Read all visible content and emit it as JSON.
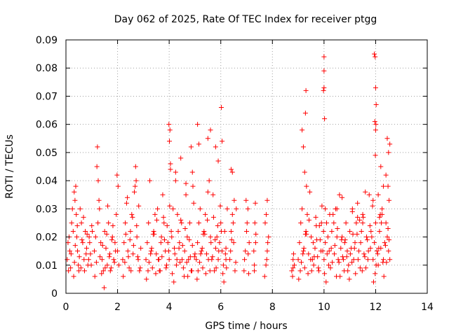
{
  "chart_data": {
    "type": "scatter",
    "title": "Day 062 of 2025, Rate Of TEC Index for receiver ptgg",
    "xlabel": "GPS time / hours",
    "ylabel": "ROTI / TECUs",
    "xlim": [
      0,
      14
    ],
    "ylim": [
      0,
      0.09
    ],
    "xticks": [
      0,
      2,
      4,
      6,
      8,
      10,
      12,
      14
    ],
    "yticks": [
      0,
      0.01,
      0.02,
      0.03,
      0.04,
      0.05,
      0.06,
      0.07,
      0.08,
      0.09
    ],
    "xtick_labels": [
      "0",
      "2",
      "4",
      "6",
      "8",
      "10",
      "12",
      "14"
    ],
    "ytick_labels": [
      "0",
      "0.01",
      "0.02",
      "0.03",
      "0.04",
      "0.05",
      "0.06",
      "0.07",
      "0.08",
      "0.09"
    ],
    "grid": true,
    "marker": "plus",
    "color": "#ff0000",
    "series": [
      {
        "name": "ROTI",
        "x": [
          0.05,
          0.08,
          0.12,
          0.15,
          0.18,
          0.22,
          0.25,
          0.28,
          0.32,
          0.35,
          0.38,
          0.4,
          0.42,
          0.45,
          0.48,
          0.5,
          0.55,
          0.6,
          0.65,
          0.7,
          0.75,
          0.8,
          0.85,
          0.9,
          0.95,
          1.0,
          0.1,
          0.2,
          0.3,
          0.33,
          0.36,
          0.44,
          0.52,
          0.58,
          0.62,
          0.68,
          0.72,
          0.78,
          0.82,
          0.88,
          0.92,
          0.98,
          1.02,
          1.1,
          1.15,
          1.2,
          1.22,
          1.25,
          1.3,
          1.35,
          1.4,
          1.45,
          1.5,
          1.55,
          1.6,
          1.65,
          1.7,
          1.75,
          1.8,
          1.85,
          1.9,
          1.95,
          2.0,
          2.05,
          1.12,
          1.18,
          1.24,
          1.28,
          1.32,
          1.38,
          1.42,
          1.48,
          1.52,
          1.58,
          1.62,
          1.68,
          1.72,
          1.78,
          1.82,
          1.88,
          1.92,
          1.98,
          2.02,
          2.2,
          2.25,
          2.3,
          2.35,
          2.4,
          2.45,
          2.5,
          2.55,
          2.6,
          2.65,
          2.7,
          2.72,
          2.75,
          2.8,
          2.85,
          2.9,
          2.22,
          2.28,
          2.32,
          2.38,
          2.42,
          2.48,
          2.52,
          2.58,
          2.62,
          2.68,
          2.74,
          2.78,
          2.82,
          2.88,
          3.1,
          3.15,
          3.2,
          3.25,
          3.3,
          3.35,
          3.4,
          3.45,
          3.5,
          3.55,
          3.6,
          3.65,
          3.7,
          3.75,
          3.8,
          3.85,
          3.9,
          3.95,
          4.0,
          4.05,
          4.1,
          4.15,
          4.2,
          4.25,
          4.3,
          4.35,
          4.4,
          4.45,
          4.5,
          4.55,
          4.6,
          4.65,
          4.7,
          4.75,
          4.8,
          4.85,
          4.9,
          4.95,
          5.0,
          3.12,
          3.22,
          3.32,
          3.42,
          3.52,
          3.62,
          3.72,
          3.82,
          3.92,
          4.02,
          4.12,
          4.22,
          4.32,
          4.42,
          4.52,
          4.62,
          4.72,
          4.82,
          4.92,
          3.18,
          3.28,
          3.38,
          3.48,
          3.58,
          3.68,
          3.78,
          3.88,
          3.98,
          4.08,
          4.18,
          4.28,
          4.38,
          4.48,
          4.58,
          4.68,
          4.78,
          4.88,
          4.98,
          3.99,
          4.01,
          4.03,
          4.05,
          4.25,
          4.45,
          4.65,
          4.85,
          4.9,
          5.1,
          5.15,
          5.05,
          5.1,
          5.15,
          5.2,
          5.25,
          5.3,
          5.35,
          5.4,
          5.45,
          5.5,
          5.55,
          5.6,
          5.65,
          5.7,
          5.75,
          5.8,
          5.85,
          5.9,
          5.95,
          6.0,
          6.05,
          6.1,
          6.15,
          6.2,
          6.25,
          5.08,
          5.18,
          5.28,
          5.38,
          5.48,
          5.58,
          5.68,
          5.78,
          5.88,
          5.98,
          6.08,
          6.18,
          6.22,
          5.12,
          5.22,
          5.32,
          5.42,
          5.52,
          5.62,
          5.72,
          5.82,
          5.92,
          6.02,
          6.12,
          6.2,
          5.5,
          5.6,
          5.8,
          5.9,
          6.02,
          6.05,
          6.4,
          6.45,
          6.35,
          6.4,
          6.45,
          6.5,
          6.55,
          6.6,
          6.38,
          6.48,
          6.58,
          6.42,
          6.52,
          6.9,
          6.95,
          7.0,
          7.05,
          7.1,
          6.92,
          7.02,
          7.08,
          6.98,
          7.06,
          7.3,
          7.35,
          7.32,
          7.28,
          7.34,
          7.3,
          7.36,
          7.7,
          7.75,
          7.8,
          7.85,
          7.72,
          7.78,
          7.82,
          7.76,
          7.8,
          8.75,
          8.8,
          8.85,
          8.78,
          8.82,
          8.8,
          9.0,
          9.05,
          9.1,
          9.15,
          9.2,
          9.25,
          9.3,
          9.35,
          9.4,
          9.45,
          9.5,
          9.55,
          9.6,
          9.65,
          9.7,
          9.75,
          9.8,
          9.85,
          9.9,
          9.95,
          10.0,
          10.05,
          10.1,
          10.15,
          10.2,
          10.25,
          10.3,
          10.35,
          10.4,
          10.45,
          10.5,
          10.55,
          10.6,
          10.65,
          10.7,
          10.75,
          10.8,
          10.85,
          10.9,
          10.95,
          11.0,
          11.05,
          11.1,
          11.15,
          11.2,
          11.25,
          11.3,
          11.35,
          11.4,
          11.45,
          11.5,
          11.55,
          11.6,
          11.65,
          11.7,
          11.75,
          11.8,
          11.85,
          11.9,
          11.95,
          12.0,
          12.05,
          12.1,
          12.15,
          12.2,
          12.25,
          12.3,
          12.35,
          12.4,
          12.45,
          12.5,
          12.55,
          9.02,
          9.12,
          9.22,
          9.32,
          9.42,
          9.52,
          9.62,
          9.72,
          9.82,
          9.92,
          10.02,
          10.12,
          10.22,
          10.32,
          10.42,
          10.52,
          10.62,
          10.72,
          10.82,
          10.92,
          11.02,
          11.12,
          11.22,
          11.32,
          11.42,
          11.52,
          11.62,
          11.72,
          11.82,
          11.92,
          12.02,
          12.12,
          12.22,
          12.32,
          12.42,
          12.52,
          9.08,
          9.18,
          9.28,
          9.38,
          9.48,
          9.58,
          9.68,
          9.78,
          9.88,
          9.98,
          10.08,
          10.18,
          10.28,
          10.38,
          10.48,
          10.58,
          10.68,
          10.78,
          10.88,
          10.98,
          11.08,
          11.18,
          11.28,
          11.38,
          11.48,
          11.58,
          11.68,
          11.78,
          11.88,
          11.98,
          12.08,
          12.18,
          12.28,
          12.38,
          12.48,
          9.15,
          9.2,
          9.25,
          9.28,
          9.3,
          9.32,
          10.0,
          10.0,
          10.0,
          9.98,
          10.02,
          10.05,
          11.95,
          11.98,
          12.0,
          12.02,
          11.97,
          12.01,
          12.0,
          11.99,
          12.2,
          12.3,
          12.4,
          12.45,
          12.5,
          12.55,
          12.48,
          12.52,
          11.9,
          12.1,
          12.15,
          12.25,
          10.5,
          10.7,
          11.1,
          11.3,
          11.5
        ],
        "y": [
          0.012,
          0.018,
          0.02,
          0.015,
          0.009,
          0.025,
          0.03,
          0.022,
          0.036,
          0.033,
          0.038,
          0.028,
          0.02,
          0.015,
          0.01,
          0.008,
          0.03,
          0.025,
          0.018,
          0.012,
          0.022,
          0.016,
          0.01,
          0.02,
          0.014,
          0.024,
          0.008,
          0.014,
          0.006,
          0.011,
          0.017,
          0.024,
          0.013,
          0.009,
          0.019,
          0.027,
          0.008,
          0.014,
          0.021,
          0.012,
          0.018,
          0.01,
          0.022,
          0.015,
          0.02,
          0.045,
          0.052,
          0.04,
          0.03,
          0.018,
          0.012,
          0.008,
          0.022,
          0.016,
          0.01,
          0.025,
          0.014,
          0.009,
          0.02,
          0.012,
          0.018,
          0.028,
          0.015,
          0.01,
          0.006,
          0.011,
          0.025,
          0.033,
          0.013,
          0.007,
          0.017,
          0.002,
          0.009,
          0.021,
          0.031,
          0.013,
          0.008,
          0.019,
          0.024,
          0.011,
          0.015,
          0.042,
          0.038,
          0.012,
          0.018,
          0.025,
          0.032,
          0.015,
          0.009,
          0.022,
          0.028,
          0.014,
          0.036,
          0.045,
          0.04,
          0.02,
          0.012,
          0.008,
          0.016,
          0.006,
          0.011,
          0.021,
          0.034,
          0.013,
          0.019,
          0.008,
          0.027,
          0.017,
          0.038,
          0.024,
          0.013,
          0.031,
          0.009,
          0.012,
          0.018,
          0.025,
          0.04,
          0.015,
          0.009,
          0.022,
          0.028,
          0.014,
          0.03,
          0.012,
          0.008,
          0.02,
          0.035,
          0.025,
          0.015,
          0.01,
          0.018,
          0.012,
          0.046,
          0.02,
          0.03,
          0.016,
          0.04,
          0.012,
          0.022,
          0.018,
          0.026,
          0.012,
          0.009,
          0.015,
          0.035,
          0.02,
          0.012,
          0.025,
          0.008,
          0.017,
          0.032,
          0.014,
          0.005,
          0.011,
          0.016,
          0.021,
          0.026,
          0.008,
          0.013,
          0.019,
          0.024,
          0.031,
          0.007,
          0.014,
          0.028,
          0.011,
          0.017,
          0.023,
          0.006,
          0.013,
          0.038,
          0.008,
          0.014,
          0.021,
          0.007,
          0.012,
          0.018,
          0.027,
          0.009,
          0.015,
          0.022,
          0.004,
          0.01,
          0.016,
          0.025,
          0.006,
          0.011,
          0.019,
          0.008,
          0.013,
          0.06,
          0.054,
          0.058,
          0.044,
          0.043,
          0.048,
          0.039,
          0.052,
          0.043,
          0.06,
          0.053,
          0.012,
          0.018,
          0.025,
          0.03,
          0.015,
          0.009,
          0.022,
          0.028,
          0.014,
          0.036,
          0.04,
          0.02,
          0.012,
          0.035,
          0.008,
          0.016,
          0.02,
          0.012,
          0.018,
          0.025,
          0.015,
          0.01,
          0.022,
          0.016,
          0.03,
          0.005,
          0.011,
          0.016,
          0.021,
          0.026,
          0.008,
          0.013,
          0.019,
          0.024,
          0.031,
          0.007,
          0.014,
          0.009,
          0.008,
          0.014,
          0.021,
          0.007,
          0.012,
          0.018,
          0.027,
          0.009,
          0.015,
          0.022,
          0.004,
          0.012,
          0.055,
          0.058,
          0.052,
          0.047,
          0.066,
          0.054,
          0.044,
          0.043,
          0.012,
          0.022,
          0.028,
          0.018,
          0.008,
          0.03,
          0.015,
          0.025,
          0.011,
          0.019,
          0.033,
          0.008,
          0.015,
          0.022,
          0.03,
          0.018,
          0.012,
          0.025,
          0.007,
          0.033,
          0.014,
          0.01,
          0.018,
          0.025,
          0.015,
          0.032,
          0.008,
          0.021,
          0.006,
          0.01,
          0.015,
          0.02,
          0.025,
          0.012,
          0.018,
          0.028,
          0.033,
          0.008,
          0.012,
          0.01,
          0.006,
          0.014,
          0.009,
          0.012,
          0.018,
          0.025,
          0.03,
          0.015,
          0.009,
          0.022,
          0.028,
          0.014,
          0.036,
          0.02,
          0.012,
          0.01,
          0.016,
          0.024,
          0.013,
          0.008,
          0.019,
          0.025,
          0.015,
          0.012,
          0.018,
          0.025,
          0.02,
          0.015,
          0.009,
          0.022,
          0.028,
          0.014,
          0.03,
          0.02,
          0.012,
          0.035,
          0.016,
          0.02,
          0.012,
          0.018,
          0.025,
          0.015,
          0.01,
          0.022,
          0.016,
          0.03,
          0.012,
          0.018,
          0.025,
          0.032,
          0.015,
          0.009,
          0.022,
          0.028,
          0.014,
          0.036,
          0.02,
          0.012,
          0.035,
          0.016,
          0.02,
          0.012,
          0.018,
          0.025,
          0.015,
          0.01,
          0.022,
          0.016,
          0.03,
          0.012,
          0.018,
          0.025,
          0.02,
          0.015,
          0.012,
          0.005,
          0.011,
          0.016,
          0.021,
          0.026,
          0.008,
          0.013,
          0.019,
          0.024,
          0.031,
          0.007,
          0.014,
          0.028,
          0.011,
          0.017,
          0.023,
          0.006,
          0.013,
          0.019,
          0.008,
          0.014,
          0.021,
          0.007,
          0.012,
          0.018,
          0.027,
          0.009,
          0.015,
          0.022,
          0.004,
          0.01,
          0.016,
          0.025,
          0.006,
          0.011,
          0.019,
          0.008,
          0.014,
          0.021,
          0.007,
          0.012,
          0.018,
          0.027,
          0.009,
          0.015,
          0.022,
          0.004,
          0.01,
          0.016,
          0.025,
          0.006,
          0.011,
          0.019,
          0.008,
          0.013,
          0.005,
          0.011,
          0.016,
          0.021,
          0.026,
          0.008,
          0.013,
          0.019,
          0.024,
          0.031,
          0.007,
          0.014,
          0.028,
          0.011,
          0.017,
          0.023,
          0.058,
          0.052,
          0.043,
          0.064,
          0.072,
          0.038,
          0.084,
          0.079,
          0.073,
          0.072,
          0.062,
          0.03,
          0.085,
          0.084,
          0.073,
          0.067,
          0.061,
          0.06,
          0.058,
          0.049,
          0.045,
          0.038,
          0.042,
          0.055,
          0.05,
          0.053,
          0.038,
          0.033,
          0.033,
          0.035,
          0.027,
          0.028,
          0.03,
          0.034,
          0.029,
          0.027,
          0.025
        ]
      }
    ]
  }
}
